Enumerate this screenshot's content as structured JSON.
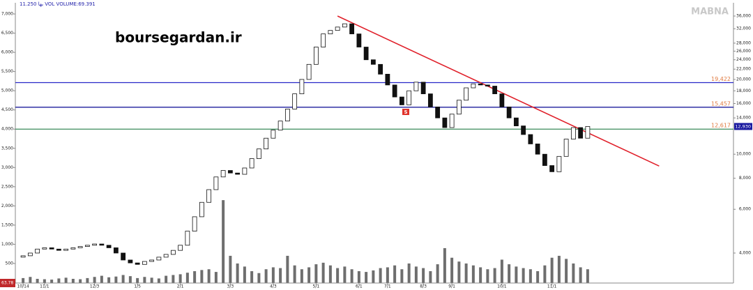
{
  "chart_data": {
    "type": "candlestick",
    "header": "11.250 بها  VOL  VOLUME:69.391",
    "watermark": "MABNA",
    "site": "boursegardan.ir",
    "corner_label": "63.78",
    "marker": "S",
    "categories": [
      "10/14",
      null,
      null,
      "11/1",
      null,
      null,
      null,
      null,
      null,
      null,
      "12/3",
      null,
      null,
      null,
      null,
      null,
      "1/5",
      null,
      null,
      null,
      null,
      null,
      "2/1",
      null,
      null,
      null,
      null,
      null,
      null,
      "3/3",
      null,
      null,
      null,
      null,
      null,
      "4/3",
      null,
      null,
      null,
      null,
      null,
      "5/1",
      null,
      null,
      null,
      null,
      null,
      "6/1",
      null,
      null,
      null,
      "7/1",
      null,
      null,
      null,
      null,
      "8/3",
      null,
      null,
      null,
      "9/1",
      null,
      null,
      null,
      null,
      null,
      null,
      "10/1",
      null,
      null,
      null,
      null,
      null,
      null,
      "11/1",
      null,
      null,
      null,
      null,
      null
    ],
    "open": [
      3850,
      3900,
      4000,
      4150,
      4200,
      4150,
      4100,
      4150,
      4200,
      4250,
      4300,
      4350,
      4300,
      4200,
      4000,
      3750,
      3650,
      3600,
      3700,
      3750,
      3850,
      3950,
      4100,
      4300,
      4900,
      5600,
      6400,
      7200,
      8100,
      8600,
      8400,
      8300,
      8800,
      9600,
      10500,
      11600,
      12500,
      13600,
      15200,
      17500,
      20000,
      23000,
      27000,
      30500,
      31500,
      32500,
      33500,
      30500,
      27000,
      24000,
      23000,
      21000,
      19000,
      17000,
      15800,
      18000,
      19500,
      17500,
      15500,
      14000,
      12800,
      14500,
      16500,
      18500,
      19200,
      19000,
      18800,
      17500,
      15500,
      14000,
      13000,
      12000,
      11000,
      10000,
      9000,
      8500,
      9800,
      11500,
      12800,
      11600
    ],
    "close": [
      3900,
      4000,
      4150,
      4200,
      4150,
      4100,
      4150,
      4200,
      4250,
      4300,
      4350,
      4300,
      4200,
      4000,
      3750,
      3650,
      3600,
      3700,
      3750,
      3850,
      3950,
      4100,
      4300,
      4900,
      5600,
      6400,
      7200,
      8100,
      8600,
      8400,
      8300,
      8800,
      9600,
      10500,
      11600,
      12500,
      13600,
      15200,
      17500,
      20000,
      23000,
      27000,
      30500,
      31500,
      32500,
      33500,
      30500,
      27000,
      24000,
      23000,
      21000,
      19000,
      17000,
      15800,
      18000,
      19500,
      17500,
      15500,
      14000,
      12800,
      14500,
      16500,
      18500,
      19200,
      19000,
      18800,
      17500,
      15500,
      14000,
      13000,
      12000,
      11000,
      10000,
      9000,
      8500,
      9800,
      11500,
      12800,
      11600,
      12930
    ],
    "volume": [
      120,
      150,
      100,
      90,
      80,
      110,
      130,
      100,
      90,
      120,
      150,
      180,
      140,
      160,
      200,
      170,
      120,
      150,
      130,
      110,
      180,
      200,
      220,
      260,
      300,
      330,
      350,
      280,
      2150,
      700,
      500,
      420,
      300,
      250,
      350,
      400,
      380,
      700,
      450,
      350,
      400,
      480,
      520,
      450,
      380,
      420,
      350,
      300,
      280,
      320,
      380,
      400,
      450,
      350,
      500,
      420,
      380,
      300,
      480,
      900,
      650,
      550,
      500,
      450,
      400,
      350,
      380,
      600,
      480,
      420,
      380,
      350,
      300,
      450,
      650,
      700,
      620,
      500,
      400,
      350
    ],
    "ylim": [
      0,
      7273
    ],
    "yticks": [
      500,
      {
        "value": 1000,
        "label": "1,000"
      },
      {
        "value": 1500,
        "label": "1,500"
      },
      {
        "value": 2000,
        "label": "2,000"
      },
      {
        "value": 2500,
        "label": "2,500"
      },
      {
        "value": 3000,
        "label": "3,000"
      },
      {
        "value": 3500,
        "label": "3,500"
      },
      {
        "value": 4000,
        "label": "4,000"
      },
      {
        "value": 4500,
        "label": "4,500"
      },
      {
        "value": 5000,
        "label": "5,000"
      },
      {
        "value": 5500,
        "label": "5,500"
      },
      {
        "value": 6000,
        "label": "6,000"
      },
      {
        "value": 6500,
        "label": "6,500"
      },
      {
        "value": 7000,
        "label": "7,000"
      }
    ],
    "y2lim": [
      3039,
      40440
    ],
    "y2log": true,
    "y2ticks": [
      {
        "value": 4000,
        "label": "4,000"
      },
      {
        "value": 6000,
        "label": "6,000"
      },
      {
        "value": 8000,
        "label": "8,000"
      },
      {
        "value": 10000,
        "label": "10,000"
      },
      {
        "value": 14000,
        "label": "14,000"
      },
      {
        "value": 16000,
        "label": "16,000"
      },
      {
        "value": 18000,
        "label": "18,000"
      },
      {
        "value": 20000,
        "label": "20,000"
      },
      {
        "value": 22000,
        "label": "22,000"
      },
      {
        "value": 24000,
        "label": "24,000"
      },
      {
        "value": 26000,
        "label": "26,000"
      },
      {
        "value": 28000,
        "label": "28,000"
      },
      {
        "value": 32000,
        "label": "32,000"
      },
      {
        "value": 36000,
        "label": "36,000"
      }
    ],
    "levels": [
      {
        "value": 19422,
        "label": "19,422",
        "color": "#2828c8"
      },
      {
        "value": 15457,
        "label": "15,457",
        "color": "#1c1c9c"
      },
      {
        "value": 12617,
        "label": "12,617",
        "color": "#3a8a5a"
      }
    ],
    "last_price": {
      "value": 12930,
      "label": "12,930"
    },
    "trendline": {
      "x": [
        44,
        89
      ],
      "values": [
        36000,
        8960
      ],
      "color": "#e0202a"
    }
  }
}
